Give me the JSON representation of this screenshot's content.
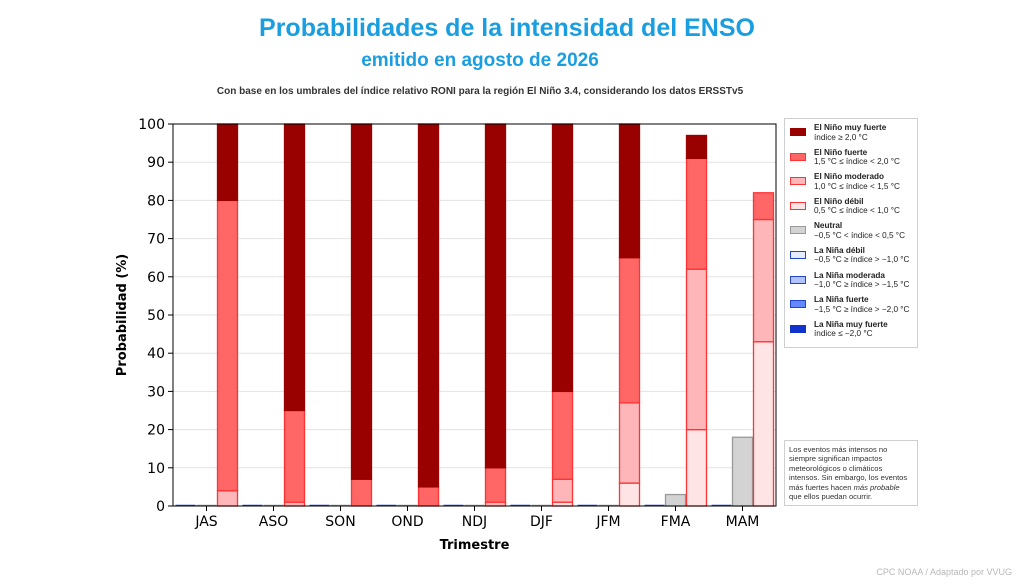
{
  "page": {
    "title": "Probabilidades de la intensidad del ENSO",
    "subtitle": "emitido en agosto de 2026",
    "note": "Con base en los umbrales del índice relativo RONI para la región El Niño 3.4, considerando los datos ERSSTv5",
    "caveat_before": "Los eventos más intensos no siempre significan impactos meteorológicos o climáticos intensos. Sin embargo, los eventos más fuertes hacen ",
    "caveat_em": "más probable",
    "caveat_after": " que ellos puedan ocurrir.",
    "credit": "CPC NOAA / Adaptado por VVUG"
  },
  "legend": [
    {
      "name": "El Niño muy fuerte",
      "range": "índice ≥ 2,0 °C",
      "fill": "#990000",
      "stroke": "#990000"
    },
    {
      "name": "El Niño fuerte",
      "range": "1,5 °C ≤ índice < 2,0 °C",
      "fill": "#ff6666",
      "stroke": "#ff3333"
    },
    {
      "name": "El Niño moderado",
      "range": "1,0 °C ≤ índice < 1,5 °C",
      "fill": "#ffb6b9",
      "stroke": "#ff3333"
    },
    {
      "name": "El Niño débil",
      "range": "0,5 °C ≤ índice < 1,0 °C",
      "fill": "#ffe4e6",
      "stroke": "#ff3333"
    },
    {
      "name": "Neutral",
      "range": "−0,5 °C < índice < 0,5 °C",
      "fill": "#d3d3d3",
      "stroke": "#999999"
    },
    {
      "name": "La Niña débil",
      "range": "−0,5 °C ≥ índice > −1,0 °C",
      "fill": "#e6ecff",
      "stroke": "#2244cc"
    },
    {
      "name": "La Niña moderada",
      "range": "−1,0 °C ≥ índice > −1,5 °C",
      "fill": "#b3c3ff",
      "stroke": "#2244cc"
    },
    {
      "name": "La Niña fuerte",
      "range": "−1,5 °C ≥ índice > −2,0 °C",
      "fill": "#6688ff",
      "stroke": "#2244cc"
    },
    {
      "name": "La Niña muy fuerte",
      "range": "índice ≤ −2,0 °C",
      "fill": "#1133cc",
      "stroke": "#1133cc"
    }
  ],
  "chart_data": {
    "type": "bar",
    "title": "Probabilidades de la intensidad del ENSO",
    "subtitle": "emitido en agosto de 2026",
    "xlabel": "Trimestre",
    "ylabel": "Probabilidad (%)",
    "ylim": [
      0,
      100
    ],
    "yticks": [
      0,
      10,
      20,
      30,
      40,
      50,
      60,
      70,
      80,
      90,
      100
    ],
    "grid": true,
    "legend_position": "right",
    "categories": [
      "JAS",
      "ASO",
      "SON",
      "OND",
      "NDJ",
      "DJF",
      "JFM",
      "FMA",
      "MAM"
    ],
    "groups": [
      {
        "name": "La Niña",
        "stack": [
          {
            "name": "La Niña débil",
            "values": [
              0,
              0,
              0,
              0,
              0,
              0,
              0,
              0,
              0
            ]
          },
          {
            "name": "La Niña moderada",
            "values": [
              0,
              0,
              0,
              0,
              0,
              0,
              0,
              0,
              0
            ]
          },
          {
            "name": "La Niña fuerte",
            "values": [
              0,
              0,
              0,
              0,
              0,
              0,
              0,
              0,
              0
            ]
          },
          {
            "name": "La Niña muy fuerte",
            "values": [
              0,
              0,
              0,
              0,
              0,
              0,
              0,
              0,
              0
            ]
          }
        ]
      },
      {
        "name": "Neutral",
        "stack": [
          {
            "name": "Neutral",
            "values": [
              0,
              0,
              0,
              0,
              0,
              0,
              0,
              3,
              18
            ]
          }
        ]
      },
      {
        "name": "El Niño",
        "stack": [
          {
            "name": "El Niño débil",
            "values": [
              0,
              0,
              0,
              0,
              0,
              1,
              6,
              20,
              43
            ]
          },
          {
            "name": "El Niño moderado",
            "values": [
              4,
              1,
              0,
              0,
              1,
              6,
              21,
              42,
              32
            ]
          },
          {
            "name": "El Niño fuerte",
            "values": [
              76,
              24,
              7,
              5,
              9,
              23,
              38,
              29,
              7
            ]
          },
          {
            "name": "El Niño muy fuerte",
            "values": [
              20,
              75,
              93,
              95,
              90,
              70,
              35,
              6,
              0
            ]
          }
        ]
      }
    ]
  }
}
